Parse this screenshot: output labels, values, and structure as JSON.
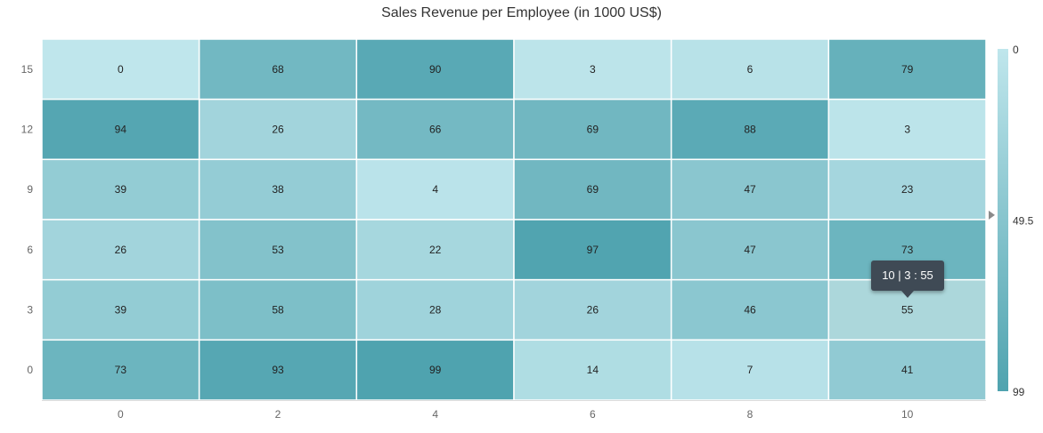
{
  "chart_data": {
    "type": "heatmap",
    "title": "Sales Revenue per Employee (in 1000 US$)",
    "x_categories": [
      "0",
      "2",
      "4",
      "6",
      "8",
      "10"
    ],
    "y_categories": [
      "15",
      "12",
      "9",
      "6",
      "3",
      "0"
    ],
    "values": [
      [
        0,
        68,
        90,
        3,
        6,
        79
      ],
      [
        94,
        26,
        66,
        69,
        88,
        3
      ],
      [
        39,
        38,
        4,
        69,
        47,
        23
      ],
      [
        26,
        53,
        22,
        97,
        47,
        73
      ],
      [
        39,
        58,
        28,
        26,
        46,
        55
      ],
      [
        73,
        93,
        99,
        14,
        7,
        41
      ]
    ],
    "legend": {
      "min": 0,
      "mid": 49.5,
      "max": 99,
      "labels": [
        "0",
        "49.5",
        "99"
      ],
      "color_low": "#bfe6ec",
      "color_high": "#4fa3af",
      "pointer_value": 55
    },
    "highlight": {
      "x": "10",
      "y": "3",
      "value": 55,
      "color": "#acd7db"
    },
    "tooltip": "10 | 3 : 55"
  }
}
